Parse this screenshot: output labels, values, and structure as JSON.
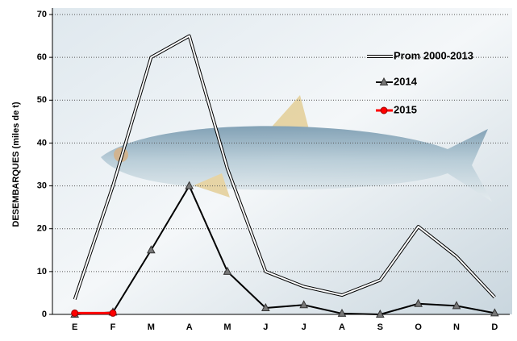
{
  "chart_data": {
    "type": "line",
    "y_label": "DESEMBARQUES   (miles de t)",
    "categories": [
      "E",
      "F",
      "M",
      "A",
      "M",
      "J",
      "J",
      "A",
      "S",
      "O",
      "N",
      "D"
    ],
    "series": [
      {
        "name": "Prom 2000-2013",
        "color": "#ffffff",
        "values": [
          3.5,
          30,
          60,
          65,
          34,
          10,
          6.5,
          4.5,
          8,
          20.5,
          13.5,
          4
        ]
      },
      {
        "name": "2014",
        "color": "#000000",
        "values": [
          0,
          0.5,
          15,
          30,
          10,
          1.5,
          2.2,
          0.2,
          0,
          2.5,
          2,
          0.3
        ]
      },
      {
        "name": "2015",
        "color": "#ff0000",
        "values": [
          0.3,
          0.3,
          null,
          null,
          null,
          null,
          null,
          null,
          null,
          null,
          null,
          null
        ]
      }
    ],
    "ylim": [
      0,
      70
    ],
    "yticks": [
      0,
      10,
      20,
      30,
      40,
      50,
      60,
      70
    ],
    "grid": true
  }
}
